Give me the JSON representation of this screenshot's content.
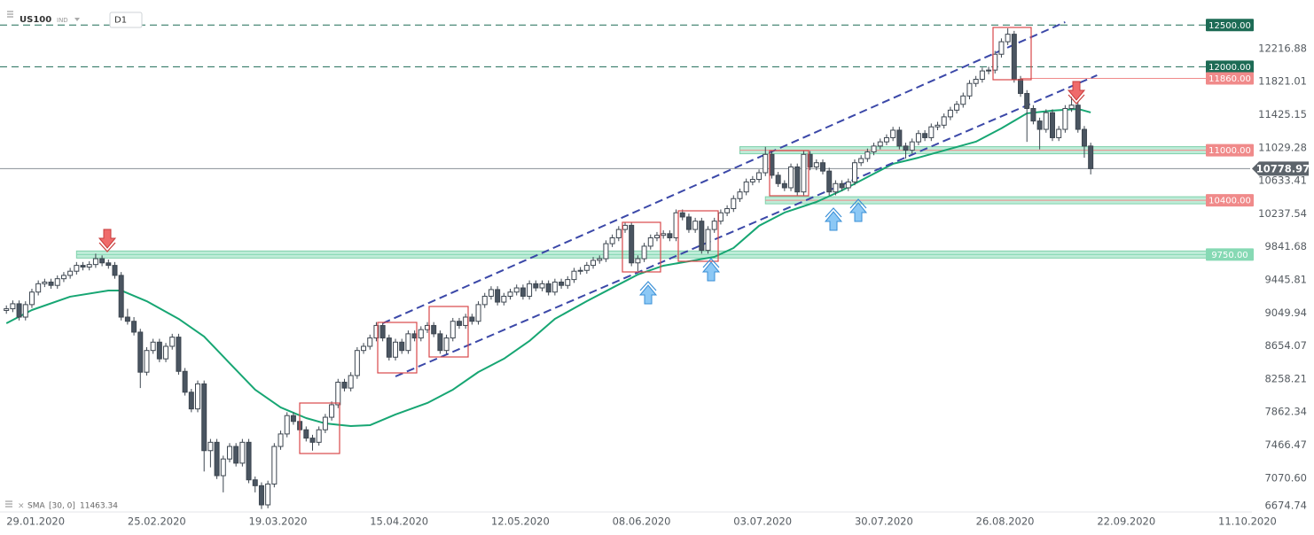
{
  "chart_data": {
    "type": "candlestick",
    "symbol": "US100",
    "instrument_type": "IND",
    "interval": "D1",
    "xlim": [
      -1,
      195
    ],
    "ylim": [
      6665,
      12800
    ],
    "xticks": [
      {
        "value": 0,
        "label": "29.01.2020"
      },
      {
        "value": 19,
        "label": "25.02.2020"
      },
      {
        "value": 38,
        "label": "19.03.2020"
      },
      {
        "value": 57,
        "label": "15.04.2020"
      },
      {
        "value": 76,
        "label": "12.05.2020"
      },
      {
        "value": 95,
        "label": "08.06.2020"
      },
      {
        "value": 114,
        "label": "03.07.2020"
      },
      {
        "value": 133,
        "label": "30.07.2020"
      },
      {
        "value": 152,
        "label": "26.08.2020"
      },
      {
        "value": 171,
        "label": "22.09.2020"
      },
      {
        "value": 190,
        "label": "11.10.2020"
      }
    ],
    "yticks": [
      12216.88,
      11821.01,
      11425.15,
      11029.28,
      10633.41,
      10237.54,
      9841.68,
      9445.81,
      9049.94,
      8654.07,
      8258.21,
      7862.34,
      7466.47,
      {
        "value": 7070.6,
        "label": "7070.60"
      },
      6674.74
    ],
    "up_color": "#ffffff",
    "down_color": "#4a5561",
    "wick_color": "#3d4650",
    "candles": [
      [
        9080,
        9140,
        9040,
        9100
      ],
      [
        9100,
        9200,
        9060,
        9160
      ],
      [
        9160,
        9200,
        8960,
        9000
      ],
      [
        9000,
        9190,
        8960,
        9150
      ],
      [
        9150,
        9340,
        9110,
        9300
      ],
      [
        9300,
        9440,
        9260,
        9400
      ],
      [
        9400,
        9460,
        9360,
        9420
      ],
      [
        9420,
        9460,
        9340,
        9380
      ],
      [
        9380,
        9500,
        9340,
        9460
      ],
      [
        9460,
        9540,
        9420,
        9500
      ],
      [
        9500,
        9590,
        9460,
        9550
      ],
      [
        9550,
        9660,
        9510,
        9620
      ],
      [
        9620,
        9660,
        9560,
        9600
      ],
      [
        9600,
        9670,
        9560,
        9630
      ],
      [
        9630,
        9760,
        9590,
        9700
      ],
      [
        9700,
        9740,
        9610,
        9650
      ],
      [
        9650,
        9690,
        9580,
        9620
      ],
      [
        9620,
        9660,
        9460,
        9500
      ],
      [
        9500,
        9540,
        8960,
        9000
      ],
      [
        9000,
        9100,
        8910,
        8950
      ],
      [
        8950,
        9000,
        8780,
        8820
      ],
      [
        8820,
        8860,
        8150,
        8340
      ],
      [
        8340,
        8640,
        8300,
        8600
      ],
      [
        8600,
        8740,
        8560,
        8700
      ],
      [
        8700,
        8740,
        8460,
        8500
      ],
      [
        8500,
        8690,
        8460,
        8650
      ],
      [
        8650,
        8800,
        8610,
        8760
      ],
      [
        8760,
        8800,
        8310,
        8350
      ],
      [
        8350,
        8390,
        8060,
        8100
      ],
      [
        8100,
        8140,
        7860,
        7900
      ],
      [
        7900,
        8240,
        7860,
        8200
      ],
      [
        8200,
        8240,
        7150,
        7400
      ],
      [
        7400,
        7540,
        7200,
        7500
      ],
      [
        7500,
        7540,
        7060,
        7100
      ],
      [
        7100,
        7340,
        6900,
        7300
      ],
      [
        7300,
        7490,
        7260,
        7450
      ],
      [
        7450,
        7490,
        7210,
        7250
      ],
      [
        7250,
        7540,
        7210,
        7500
      ],
      [
        7500,
        7540,
        7010,
        7050
      ],
      [
        7050,
        7090,
        6900,
        6980
      ],
      [
        6980,
        7020,
        6700,
        6750
      ],
      [
        6750,
        7040,
        6710,
        7000
      ],
      [
        7000,
        7490,
        6960,
        7450
      ],
      [
        7450,
        7640,
        7410,
        7600
      ],
      [
        7600,
        7860,
        7560,
        7820
      ],
      [
        7820,
        7860,
        7710,
        7750
      ],
      [
        7750,
        7790,
        7610,
        7650
      ],
      [
        7650,
        7690,
        7510,
        7550
      ],
      [
        7550,
        7590,
        7400,
        7500
      ],
      [
        7500,
        7690,
        7460,
        7650
      ],
      [
        7650,
        7840,
        7610,
        7800
      ],
      [
        7800,
        7990,
        7760,
        7950
      ],
      [
        7950,
        8260,
        7910,
        8220
      ],
      [
        8220,
        8260,
        8110,
        8150
      ],
      [
        8150,
        8340,
        8110,
        8300
      ],
      [
        8300,
        8640,
        8260,
        8600
      ],
      [
        8600,
        8690,
        8560,
        8650
      ],
      [
        8650,
        8790,
        8610,
        8750
      ],
      [
        8750,
        8940,
        8710,
        8900
      ],
      [
        8900,
        8940,
        8710,
        8750
      ],
      [
        8750,
        8790,
        8480,
        8520
      ],
      [
        8520,
        8740,
        8480,
        8700
      ],
      [
        8700,
        8740,
        8560,
        8600
      ],
      [
        8600,
        8840,
        8560,
        8800
      ],
      [
        8800,
        8840,
        8710,
        8750
      ],
      [
        8750,
        8890,
        8710,
        8850
      ],
      [
        8850,
        8940,
        8810,
        8900
      ],
      [
        8900,
        8940,
        8760,
        8800
      ],
      [
        8800,
        8840,
        8560,
        8600
      ],
      [
        8600,
        8790,
        8560,
        8750
      ],
      [
        8750,
        8990,
        8710,
        8950
      ],
      [
        8950,
        8990,
        8860,
        8900
      ],
      [
        8900,
        9040,
        8860,
        9000
      ],
      [
        9000,
        9040,
        8910,
        8950
      ],
      [
        8950,
        9190,
        8910,
        9150
      ],
      [
        9150,
        9290,
        9110,
        9250
      ],
      [
        9250,
        9370,
        9210,
        9330
      ],
      [
        9330,
        9370,
        9140,
        9180
      ],
      [
        9180,
        9290,
        9140,
        9250
      ],
      [
        9250,
        9340,
        9210,
        9300
      ],
      [
        9300,
        9390,
        9260,
        9350
      ],
      [
        9350,
        9390,
        9210,
        9250
      ],
      [
        9250,
        9440,
        9210,
        9400
      ],
      [
        9400,
        9440,
        9310,
        9350
      ],
      [
        9350,
        9440,
        9310,
        9400
      ],
      [
        9400,
        9440,
        9260,
        9300
      ],
      [
        9300,
        9460,
        9260,
        9420
      ],
      [
        9420,
        9460,
        9340,
        9380
      ],
      [
        9380,
        9490,
        9340,
        9450
      ],
      [
        9450,
        9590,
        9410,
        9550
      ],
      [
        9550,
        9600,
        9510,
        9560
      ],
      [
        9560,
        9660,
        9520,
        9620
      ],
      [
        9620,
        9720,
        9580,
        9680
      ],
      [
        9680,
        9740,
        9640,
        9700
      ],
      [
        9700,
        9920,
        9660,
        9880
      ],
      [
        9880,
        9990,
        9840,
        9950
      ],
      [
        9950,
        10090,
        9910,
        10050
      ],
      [
        10050,
        10140,
        10010,
        10100
      ],
      [
        10100,
        10140,
        9610,
        9650
      ],
      [
        9650,
        9740,
        9550,
        9700
      ],
      [
        9700,
        9890,
        9660,
        9850
      ],
      [
        9850,
        9990,
        9810,
        9950
      ],
      [
        9950,
        10020,
        9910,
        9980
      ],
      [
        9980,
        10040,
        9940,
        10000
      ],
      [
        10000,
        10040,
        9910,
        9950
      ],
      [
        9950,
        10290,
        9910,
        10250
      ],
      [
        10250,
        10290,
        10160,
        10200
      ],
      [
        10200,
        10240,
        10010,
        10050
      ],
      [
        10050,
        10190,
        10010,
        10150
      ],
      [
        10150,
        10190,
        9760,
        9800
      ],
      [
        9800,
        10090,
        9760,
        10050
      ],
      [
        10050,
        10190,
        10010,
        10150
      ],
      [
        10150,
        10290,
        10110,
        10250
      ],
      [
        10250,
        10340,
        10210,
        10300
      ],
      [
        10300,
        10460,
        10260,
        10420
      ],
      [
        10420,
        10540,
        10380,
        10500
      ],
      [
        10500,
        10660,
        10460,
        10620
      ],
      [
        10620,
        10690,
        10580,
        10650
      ],
      [
        10650,
        10770,
        10610,
        10730
      ],
      [
        10730,
        11040,
        10690,
        10950
      ],
      [
        10950,
        10990,
        10660,
        10700
      ],
      [
        10700,
        10740,
        10560,
        10600
      ],
      [
        10600,
        10640,
        10510,
        10550
      ],
      [
        10550,
        10840,
        10510,
        10800
      ],
      [
        10800,
        10840,
        10460,
        10500
      ],
      [
        10500,
        10990,
        10460,
        10950
      ],
      [
        10950,
        10990,
        10760,
        10800
      ],
      [
        10800,
        10890,
        10760,
        10850
      ],
      [
        10850,
        10890,
        10710,
        10750
      ],
      [
        10750,
        10790,
        10460,
        10500
      ],
      [
        10500,
        10640,
        10460,
        10600
      ],
      [
        10600,
        10640,
        10510,
        10550
      ],
      [
        10550,
        10660,
        10510,
        10620
      ],
      [
        10620,
        10890,
        10580,
        10850
      ],
      [
        10850,
        10940,
        10810,
        10900
      ],
      [
        10900,
        11020,
        10860,
        10980
      ],
      [
        10980,
        11090,
        10940,
        11050
      ],
      [
        11050,
        11140,
        11010,
        11100
      ],
      [
        11100,
        11190,
        11060,
        11150
      ],
      [
        11150,
        11280,
        11110,
        11240
      ],
      [
        11240,
        11280,
        11010,
        11050
      ],
      [
        11050,
        11090,
        10900,
        11000
      ],
      [
        11000,
        11140,
        10960,
        11100
      ],
      [
        11100,
        11240,
        11060,
        11200
      ],
      [
        11200,
        11240,
        11110,
        11150
      ],
      [
        11150,
        11320,
        11110,
        11280
      ],
      [
        11280,
        11340,
        11240,
        11300
      ],
      [
        11300,
        11440,
        11260,
        11400
      ],
      [
        11400,
        11520,
        11360,
        11480
      ],
      [
        11480,
        11590,
        11440,
        11550
      ],
      [
        11550,
        11690,
        11510,
        11650
      ],
      [
        11650,
        11840,
        11610,
        11800
      ],
      [
        11800,
        11890,
        11760,
        11850
      ],
      [
        11850,
        11990,
        11810,
        11950
      ],
      [
        11950,
        12000,
        11910,
        11960
      ],
      [
        11960,
        12190,
        11920,
        12150
      ],
      [
        12150,
        12340,
        12110,
        12300
      ],
      [
        12300,
        12460,
        12260,
        12390
      ],
      [
        12390,
        12430,
        11810,
        11850
      ],
      [
        11850,
        11890,
        11640,
        11680
      ],
      [
        11680,
        11720,
        11100,
        11500
      ],
      [
        11500,
        11540,
        11310,
        11350
      ],
      [
        11350,
        11390,
        11010,
        11250
      ],
      [
        11250,
        11490,
        11210,
        11450
      ],
      [
        11450,
        11490,
        11110,
        11150
      ],
      [
        11150,
        11290,
        11110,
        11250
      ],
      [
        11250,
        11540,
        11210,
        11500
      ],
      [
        11500,
        11640,
        11460,
        11540
      ],
      [
        11540,
        11580,
        11210,
        11250
      ],
      [
        11250,
        11290,
        10910,
        11050
      ],
      [
        11050,
        11090,
        10710,
        10778.97
      ]
    ],
    "sma": {
      "name": "SMA",
      "params": "[30, 0]",
      "last": 11463.34,
      "color": "#17a673",
      "x": [
        0,
        4,
        10,
        16,
        18,
        22,
        27,
        31,
        35,
        39,
        43,
        47,
        50,
        54,
        57,
        61,
        66,
        70,
        74,
        78,
        82,
        86,
        91,
        95,
        99,
        103,
        107,
        111,
        114,
        118,
        122,
        127,
        131,
        135,
        139,
        143,
        147,
        152,
        156,
        160,
        164,
        168,
        170
      ],
      "values": [
        8926,
        9085,
        9245,
        9319,
        9319,
        9191,
        8979,
        8767,
        8448,
        8130,
        7918,
        7790,
        7726,
        7695,
        7705,
        7833,
        7971,
        8130,
        8342,
        8501,
        8714,
        8979,
        9191,
        9351,
        9510,
        9616,
        9669,
        9722,
        9828,
        10094,
        10253,
        10380,
        10518,
        10678,
        10837,
        10911,
        10996,
        11102,
        11262,
        11442,
        11474,
        11495,
        11453
      ]
    },
    "trendlines": [
      {
        "color": "#3b48a8",
        "x": [
          59,
          166
        ],
        "values": [
          8926,
          12535
        ]
      },
      {
        "color": "#3b48a8",
        "x": [
          61,
          171
        ],
        "values": [
          8289,
          11898
        ]
      }
    ],
    "levels": [
      {
        "value": 12500,
        "label": "12500.00",
        "style": "dashed",
        "color": "#1d6b55",
        "from": -1
      },
      {
        "value": 12000,
        "label": "12000.00",
        "style": "dashed",
        "color": "#1d6b55",
        "from": -1
      },
      {
        "value": 11860,
        "label": "11860.00",
        "style": "line",
        "color": "#f08a8a",
        "from": 159
      },
      {
        "value": 11000,
        "label": "11000.00",
        "style": "zone",
        "color": "#f08a8a",
        "zone_color": "#a8e6cb",
        "from": 115
      },
      {
        "value": 10400,
        "label": "10400.00",
        "style": "zone",
        "color": "#f08a8a",
        "zone_color": "#a8e6cb",
        "from": 119
      },
      {
        "value": 9750,
        "label": "9750.00",
        "style": "zone",
        "color": "#86d9b4",
        "zone_color": "#a8e6cb",
        "from": 11
      }
    ],
    "last_price": 10778.97,
    "last_price_color": "#5d646b"
  }
}
